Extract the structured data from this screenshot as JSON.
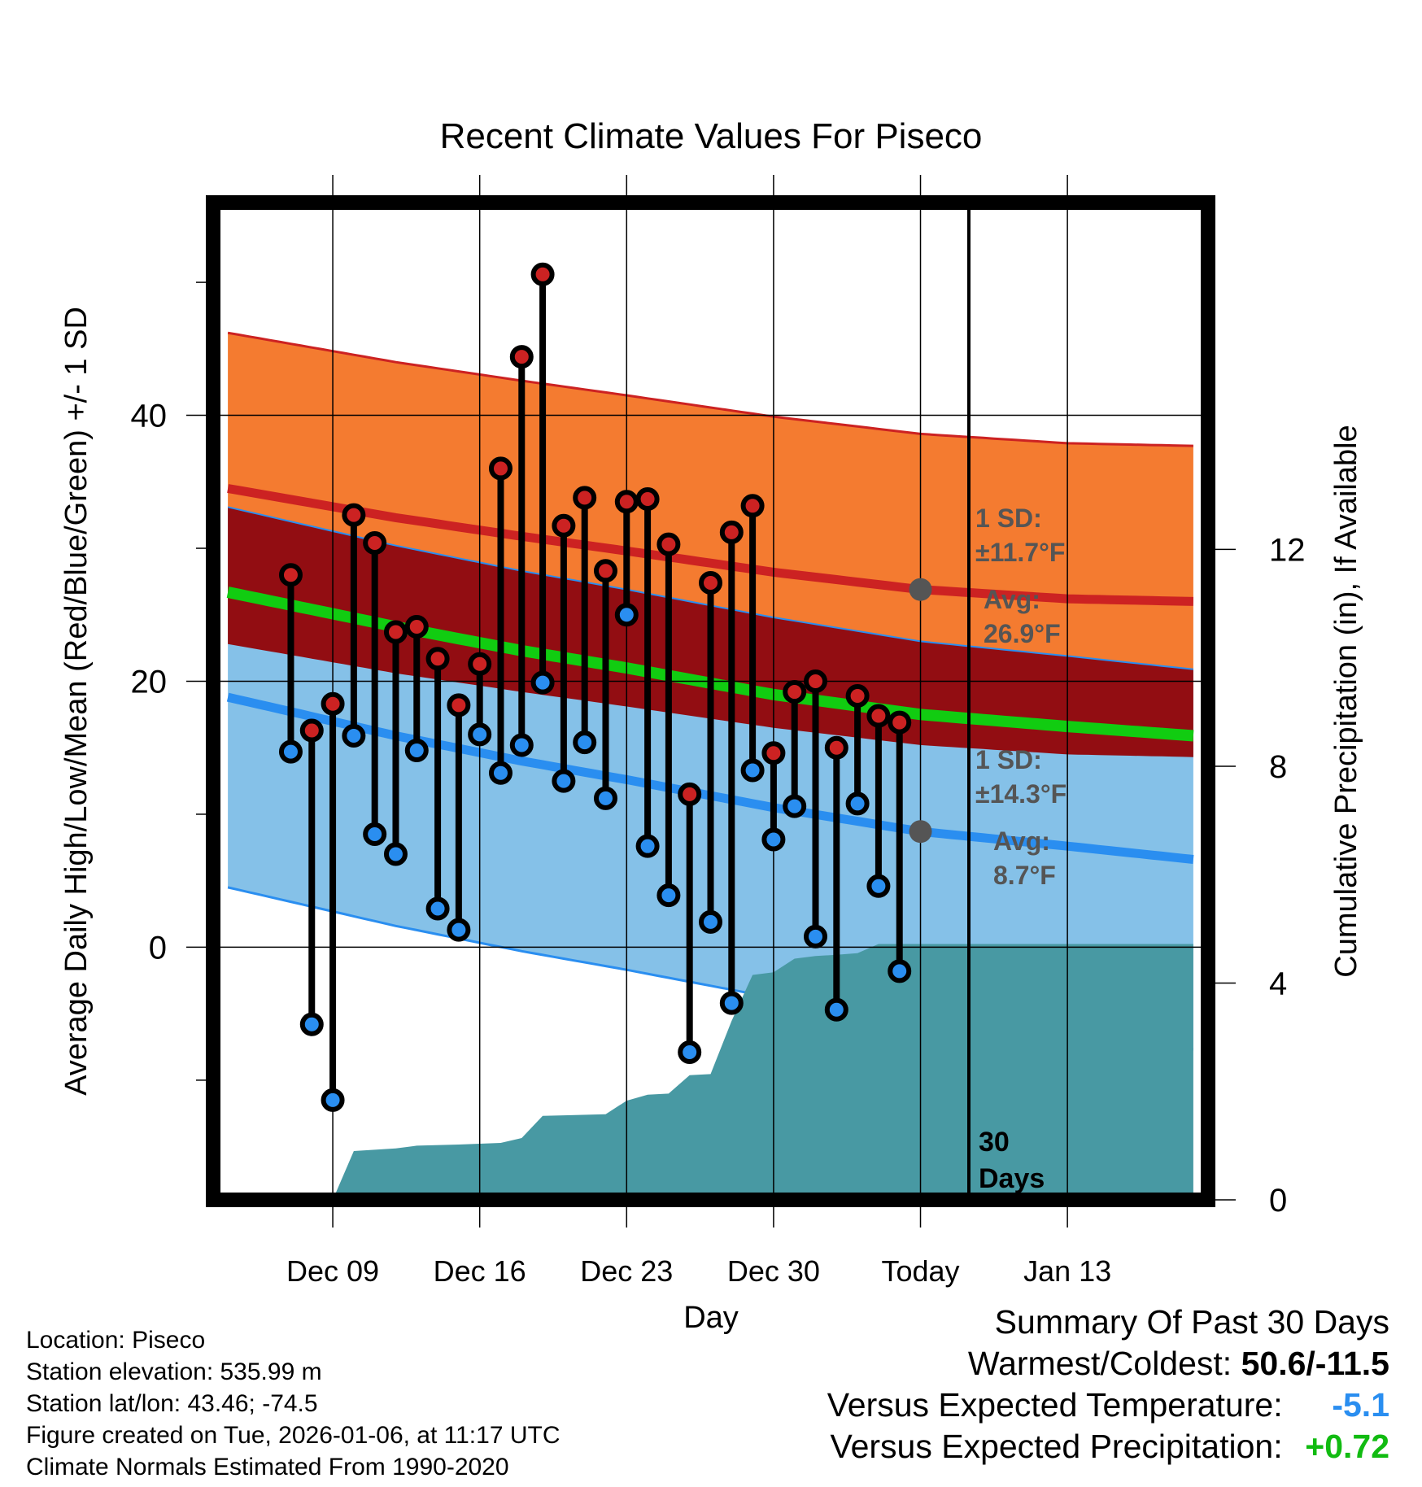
{
  "chart_data": {
    "type": "line",
    "title": "Recent Climate Values For Piseco",
    "xlabel": "Day",
    "ylabel": "Average Daily High/Low/Mean (Red/Blue/Green) +/- 1 SD",
    "y2label": "Cumulative Precipitation (in), If Available",
    "ylim": [
      -19,
      56
    ],
    "y2lim": [
      0,
      18.4
    ],
    "xlim": [
      -33.7,
      13.7
    ],
    "x_ticks": [
      {
        "x": -28,
        "label": "Dec 09"
      },
      {
        "x": -21,
        "label": "Dec 16"
      },
      {
        "x": -14,
        "label": "Dec 23"
      },
      {
        "x": -7,
        "label": "Dec 30"
      },
      {
        "x": 0,
        "label": "Today"
      },
      {
        "x": 7,
        "label": "Jan 13"
      }
    ],
    "y_ticks": [
      0,
      20,
      40
    ],
    "y_minor_ticks": [
      -10,
      10,
      30,
      50
    ],
    "y2_ticks": [
      0,
      4,
      8,
      12
    ],
    "x_days": [
      -30,
      -29,
      -28,
      -27,
      -26,
      -25,
      -24,
      -23,
      -22,
      -21,
      -20,
      -19,
      -18,
      -17,
      -16,
      -15,
      -14,
      -13,
      -12,
      -11,
      -10,
      -9,
      -8,
      -7,
      -6,
      -5,
      -4,
      -3,
      -2,
      -1
    ],
    "series": [
      {
        "name": "Daily High",
        "color": "#cc2222",
        "values": [
          28.0,
          16.3,
          18.3,
          32.5,
          30.4,
          23.7,
          24.1,
          21.7,
          18.2,
          21.3,
          36.0,
          44.4,
          50.6,
          31.7,
          33.8,
          28.3,
          33.5,
          33.7,
          30.3,
          11.5,
          27.4,
          31.2,
          33.2,
          14.6,
          19.2,
          20.0,
          15.0,
          18.9,
          17.4,
          16.9
        ]
      },
      {
        "name": "Daily Low",
        "color": "#2a8ef0",
        "values": [
          14.7,
          -5.8,
          -11.5,
          15.9,
          8.5,
          7.0,
          14.8,
          2.9,
          1.3,
          16.0,
          13.1,
          15.2,
          19.9,
          12.5,
          15.4,
          11.2,
          25.0,
          7.6,
          3.9,
          -7.9,
          1.9,
          -4.2,
          13.3,
          8.1,
          10.6,
          0.8,
          -4.7,
          10.8,
          4.6,
          -1.8
        ]
      }
    ],
    "normals": {
      "x": [
        -33,
        -25,
        -19,
        -14,
        -7,
        0,
        7,
        13
      ],
      "high_mean": [
        34.5,
        32.3,
        30.9,
        29.8,
        28.2,
        26.9,
        26.2,
        26.0
      ],
      "high_sd": 11.7,
      "low_mean": [
        18.8,
        15.9,
        14.0,
        12.6,
        10.5,
        8.7,
        7.6,
        6.6
      ],
      "low_sd": 14.3,
      "mean_avg": [
        26.7,
        24.1,
        22.3,
        21.0,
        19.0,
        17.5,
        16.6,
        15.9
      ]
    },
    "precip": {
      "x": [
        -28,
        -27,
        -25,
        -24,
        -22,
        -20,
        -19,
        -18,
        -17,
        -15,
        -14,
        -13,
        -12,
        -11,
        -10,
        -9,
        -8,
        -7,
        -6,
        -5,
        -4,
        -3,
        -2,
        13
      ],
      "values": [
        0.0,
        0.9,
        0.95,
        1.0,
        1.02,
        1.05,
        1.14,
        1.55,
        1.56,
        1.58,
        1.83,
        1.94,
        1.96,
        2.3,
        2.32,
        3.3,
        4.15,
        4.2,
        4.45,
        4.5,
        4.52,
        4.55,
        4.72,
        4.72
      ]
    },
    "annotations": {
      "high_sd_head": "1 SD:",
      "high_sd_val": "±11.7°F",
      "high_avg_head": "Avg:",
      "high_avg_val": "26.9°F",
      "low_sd_head": "1 SD:",
      "low_sd_val": "±14.3°F",
      "low_avg_head": "Avg:",
      "low_avg_val": "8.7°F",
      "days_num": "30",
      "days_word": "Days"
    },
    "colors": {
      "high_band": "#f47b30",
      "high_line": "#cc2222",
      "low_band": "#85c1e8",
      "low_line": "#2a8ef0",
      "overlap_band": "#920d12",
      "mean_line": "#11cc11",
      "precip": "#4899a3",
      "annotation": "#555555",
      "marker_today": "#555555"
    }
  },
  "info": {
    "location": "Location: Piseco",
    "elevation": "Station elevation: 535.99 m",
    "latlon": "Station lat/lon: 43.46; -74.5",
    "created": "Figure created on Tue, 2026-01-06, at 11:17 UTC",
    "normals": "Climate Normals Estimated From 1990-2020"
  },
  "summary": {
    "title": "Summary Of Past 30 Days",
    "extremes_label": "Warmest/Coldest:",
    "extremes_value": "50.6/-11.5",
    "temp_label": "Versus Expected Temperature:",
    "temp_value": "-5.1",
    "temp_color": "#2a8ef0",
    "precip_label": "Versus Expected Precipitation:",
    "precip_value": "+0.72",
    "precip_color": "#11bb11"
  }
}
